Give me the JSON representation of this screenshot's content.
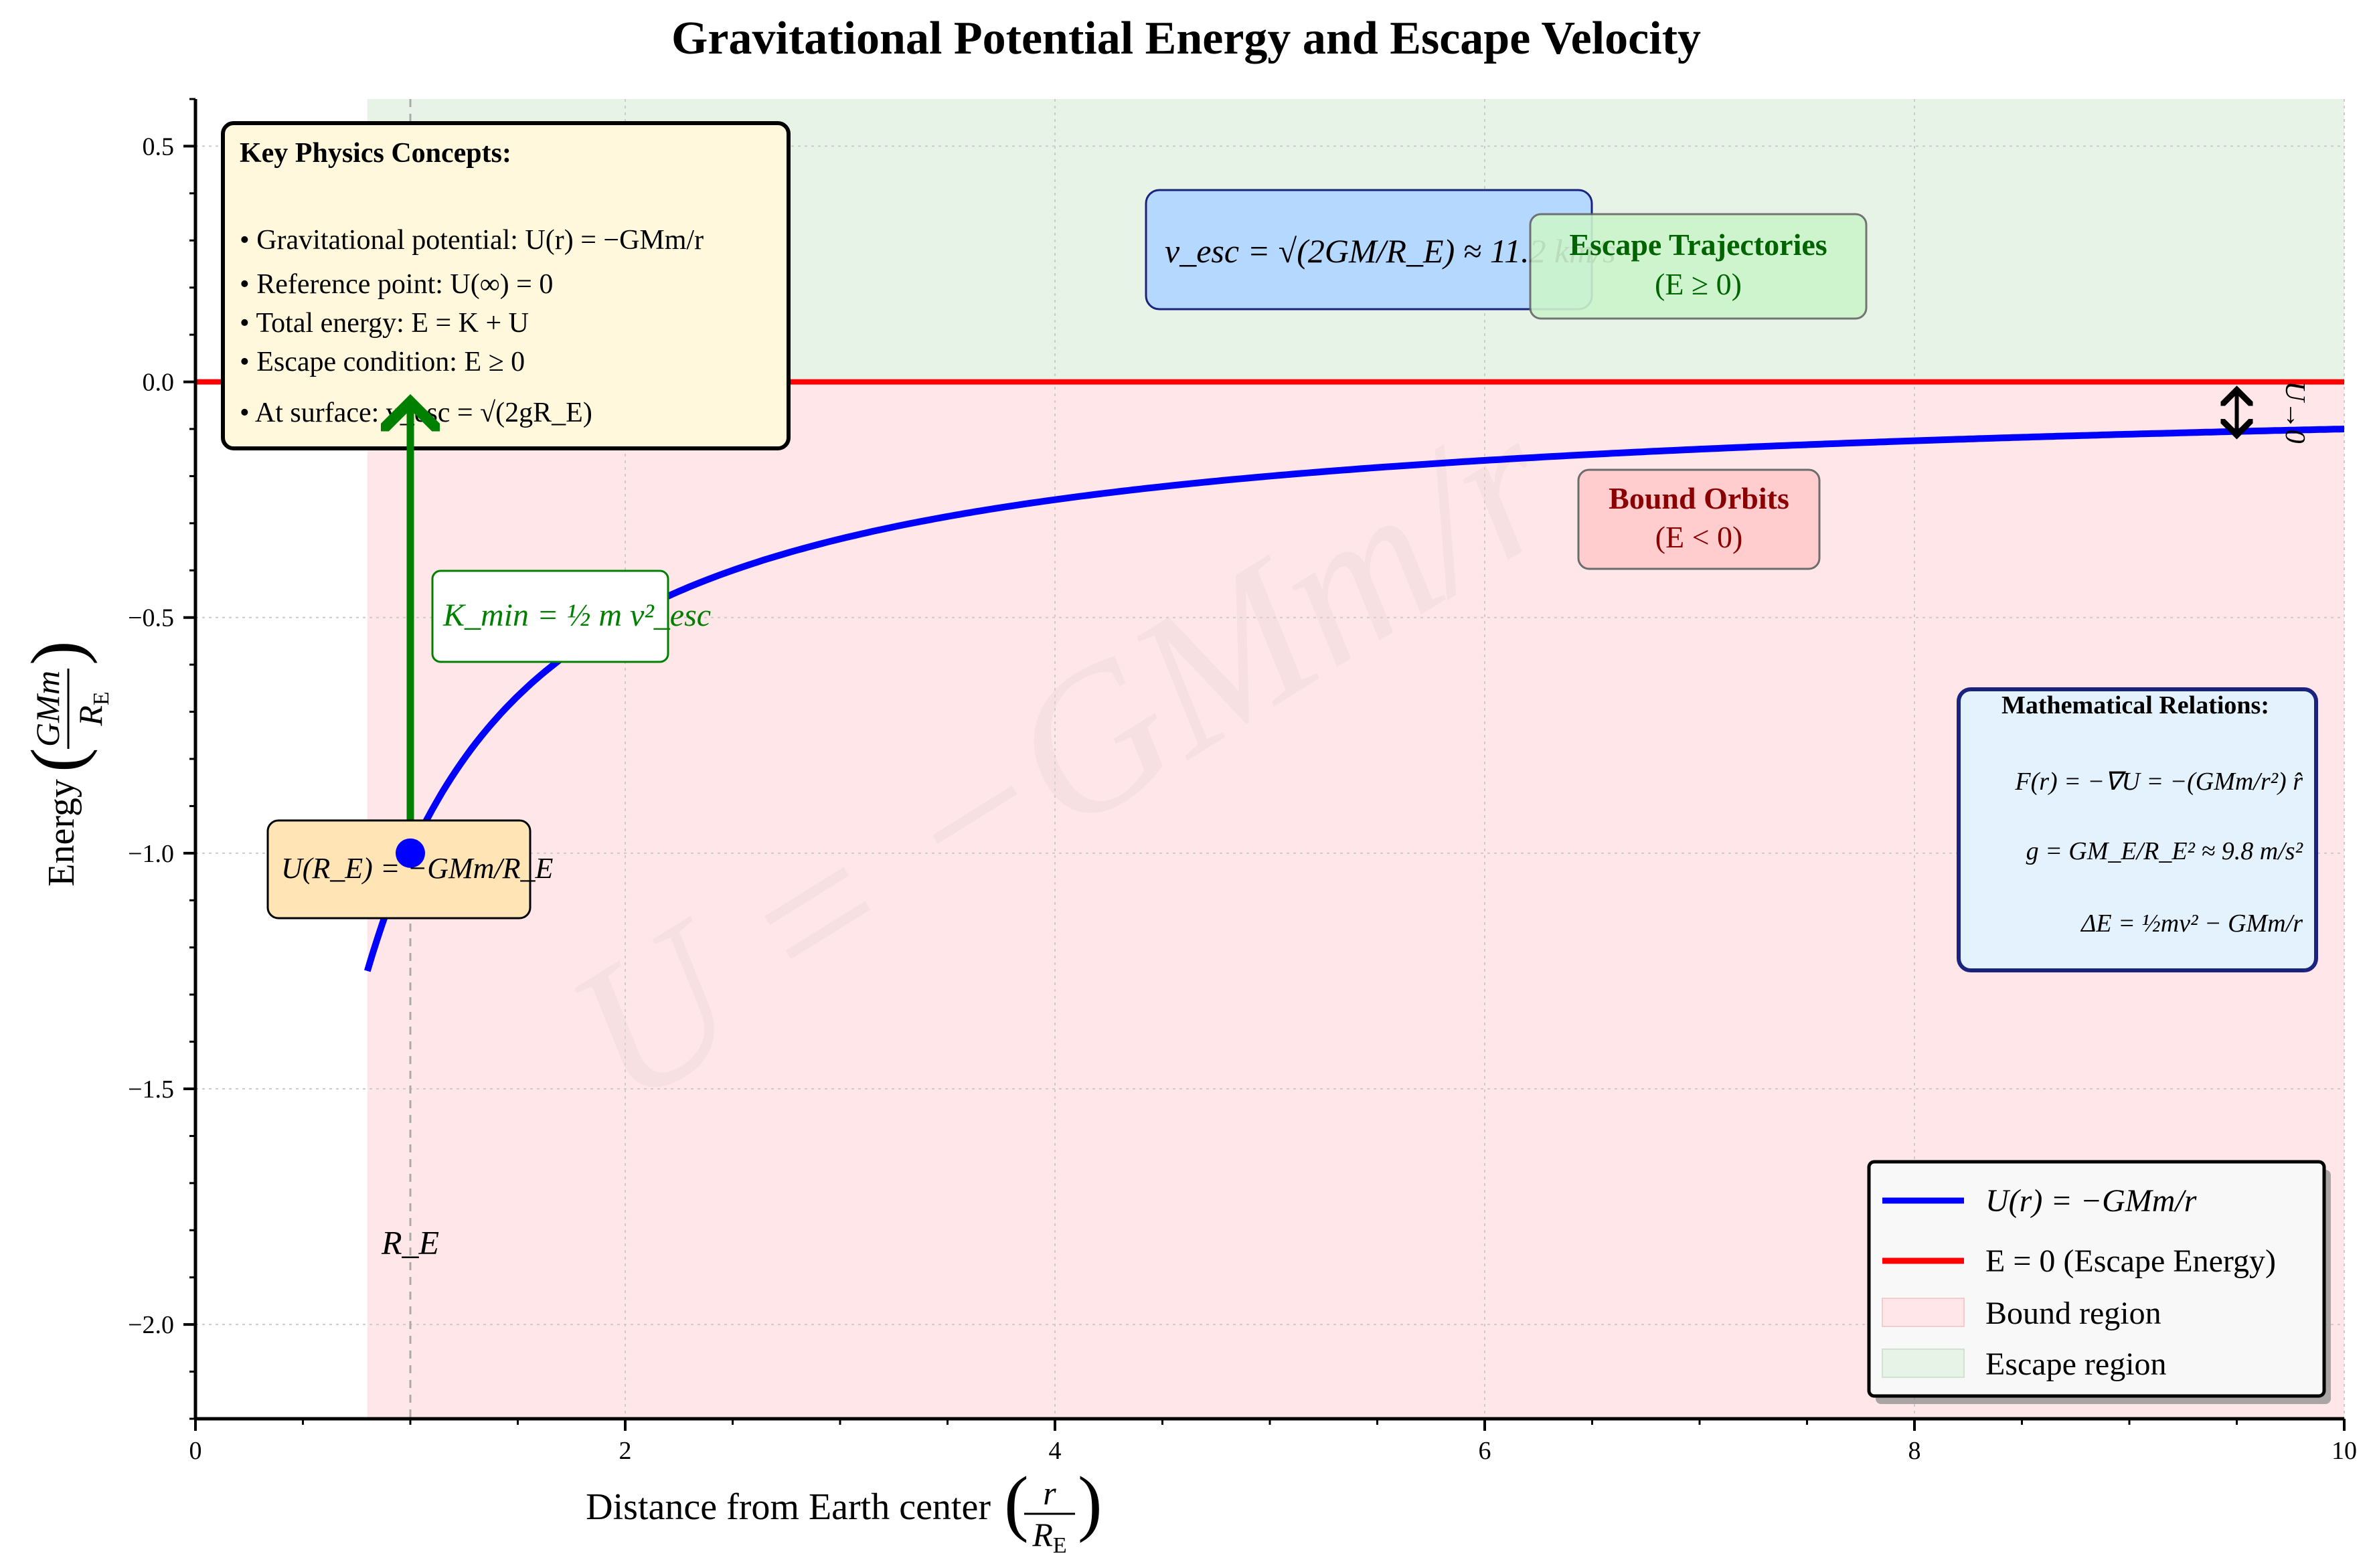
{
  "chart_data": {
    "type": "line",
    "title": "Gravitational Potential Energy and Escape Velocity",
    "xlabel": "Distance from Earth center (r / R_E)",
    "ylabel": "Energy (GMm / R_E)",
    "xlim": [
      0,
      10
    ],
    "ylim": [
      -2.2,
      0.6
    ],
    "xticks": [
      0,
      2,
      4,
      6,
      8,
      10
    ],
    "yticks": [
      -2.0,
      -1.5,
      -1.0,
      -0.5,
      0.0,
      0.5
    ],
    "xtick_labels": [
      "0",
      "2",
      "4",
      "6",
      "8",
      "10"
    ],
    "ytick_labels": [
      "−2.0",
      "−1.5",
      "−1.0",
      "−0.5",
      "0.0",
      "0.5"
    ],
    "grid": true,
    "legend_position": "lower-right",
    "series": [
      {
        "name": "U(r) = −GMm/r",
        "color": "#0000ff",
        "function": "-1/x",
        "x_range": [
          0.8,
          10
        ]
      },
      {
        "name": "E = 0 (Escape Energy)",
        "color": "#ff0000",
        "function": "0",
        "x_range": [
          0,
          10
        ]
      }
    ],
    "regions": [
      {
        "name": "Bound region",
        "color": "#ffcccc",
        "x_range": [
          0.8,
          10
        ],
        "y_range": [
          -2.2,
          0
        ]
      },
      {
        "name": "Escape region",
        "color": "#cce6cc",
        "x_range": [
          0.8,
          10
        ],
        "y_range": [
          0,
          0.6
        ]
      }
    ],
    "surface_point": {
      "x": 1,
      "y": -1
    },
    "surface_line_x": 1,
    "arrow_Kmin": {
      "x": 1,
      "from_y": -1,
      "to_y": 0
    },
    "arrow_U_to_0": {
      "x": 9.5,
      "from_y": -0.13,
      "to_y": 0
    },
    "annotations": {
      "surface_label": "R_E",
      "u_surface": "U(R_E) = −GMm/R_E",
      "k_min": "K_min = ½ m v²_esc",
      "v_esc": "v_esc = √(2GM/R_E) ≈ 11.2 km/s",
      "escape_title": "Escape Trajectories",
      "escape_sub": "(E ≥ 0)",
      "bound_title": "Bound Orbits",
      "bound_sub": "(E < 0)",
      "u_to_zero": "U→0",
      "watermark": "U = −GMm/r"
    },
    "key_concepts": {
      "title": "Key Physics Concepts:",
      "items": [
        "• Gravitational potential: U(r) = −GMm/r",
        "• Reference point: U(∞) = 0",
        "• Total energy: E = K + U",
        "• Escape condition: E ≥ 0",
        "• At surface: v_esc = √(2gR_E)"
      ]
    },
    "math_relations": {
      "title": "Mathematical Relations:",
      "items": [
        "F(r) = −∇U = −(GMm/r²) r̂",
        "g = GM_E/R_E² ≈ 9.8 m/s²",
        "ΔE = ½mv² − GMm/r"
      ]
    },
    "legend": [
      {
        "label": "U(r) = −GMm/r",
        "kind": "line",
        "color": "#0000ff"
      },
      {
        "label": "E = 0 (Escape Energy)",
        "kind": "line",
        "color": "#ff0000"
      },
      {
        "label": "Bound region",
        "kind": "patch",
        "color": "#ffe6e6"
      },
      {
        "label": "Escape region",
        "kind": "patch",
        "color": "#e6f2e6"
      }
    ]
  }
}
